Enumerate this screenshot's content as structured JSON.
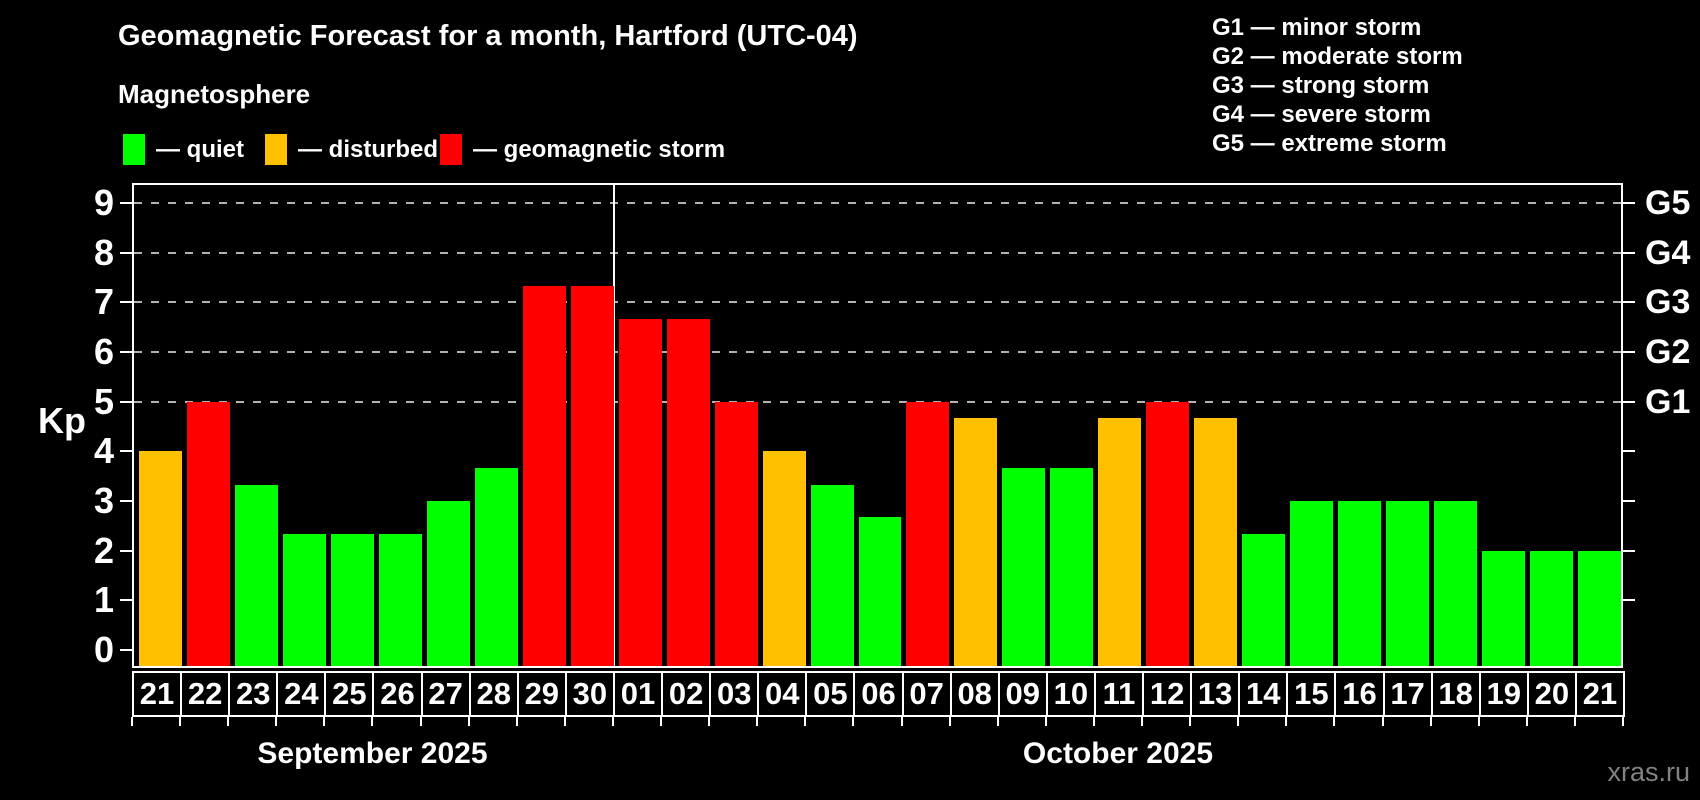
{
  "title": "Geomagnetic Forecast for a month, Hartford (UTC-04)",
  "subtitle": "Magnetosphere",
  "magnetosphere_legend": [
    {
      "status": "quiet",
      "label": "— quiet",
      "color": "#00ff00"
    },
    {
      "status": "disturbed",
      "label": "— disturbed",
      "color": "#ffc000"
    },
    {
      "status": "storm",
      "label": "— geomagnetic storm",
      "color": "#ff0000"
    }
  ],
  "storm_scale_legend": [
    "G1 — minor storm",
    "G2 — moderate storm",
    "G3 — strong storm",
    "G4 — severe storm",
    "G5 — extreme storm"
  ],
  "watermark": "xras.ru",
  "chart_data": {
    "type": "bar",
    "title": "Geomagnetic Forecast for a month, Hartford (UTC-04)",
    "ylabel": "Kp",
    "ylim": [
      -0.35,
      9.65
    ],
    "yticks": [
      0,
      1,
      2,
      3,
      4,
      5,
      6,
      7,
      8,
      9
    ],
    "gridlines_at": [
      5,
      6,
      7,
      8,
      9
    ],
    "grid_style": "dashed",
    "legend_position": "top",
    "right_axis": [
      {
        "kp": 5,
        "label": "G1"
      },
      {
        "kp": 6,
        "label": "G2"
      },
      {
        "kp": 7,
        "label": "G3"
      },
      {
        "kp": 8,
        "label": "G4"
      },
      {
        "kp": 9,
        "label": "G5"
      }
    ],
    "status_colors": {
      "quiet": "#00ff00",
      "disturbed": "#ffc000",
      "storm": "#ff0000"
    },
    "months": [
      {
        "label": "September 2025",
        "start_index": 0,
        "days": 10
      },
      {
        "label": "October 2025",
        "start_index": 10,
        "days": 21
      }
    ],
    "bars": [
      {
        "day": "21",
        "kp": 4.0,
        "status": "disturbed"
      },
      {
        "day": "22",
        "kp": 5.0,
        "status": "storm"
      },
      {
        "day": "23",
        "kp": 3.33,
        "status": "quiet"
      },
      {
        "day": "24",
        "kp": 2.33,
        "status": "quiet"
      },
      {
        "day": "25",
        "kp": 2.33,
        "status": "quiet"
      },
      {
        "day": "26",
        "kp": 2.33,
        "status": "quiet"
      },
      {
        "day": "27",
        "kp": 3.0,
        "status": "quiet"
      },
      {
        "day": "28",
        "kp": 3.67,
        "status": "quiet"
      },
      {
        "day": "29",
        "kp": 7.33,
        "status": "storm"
      },
      {
        "day": "30",
        "kp": 7.33,
        "status": "storm"
      },
      {
        "day": "01",
        "kp": 6.67,
        "status": "storm"
      },
      {
        "day": "02",
        "kp": 6.67,
        "status": "storm"
      },
      {
        "day": "03",
        "kp": 5.0,
        "status": "storm"
      },
      {
        "day": "04",
        "kp": 4.0,
        "status": "disturbed"
      },
      {
        "day": "05",
        "kp": 3.33,
        "status": "quiet"
      },
      {
        "day": "06",
        "kp": 2.67,
        "status": "quiet"
      },
      {
        "day": "07",
        "kp": 5.0,
        "status": "storm"
      },
      {
        "day": "08",
        "kp": 4.67,
        "status": "disturbed"
      },
      {
        "day": "09",
        "kp": 3.67,
        "status": "quiet"
      },
      {
        "day": "10",
        "kp": 3.67,
        "status": "quiet"
      },
      {
        "day": "11",
        "kp": 4.67,
        "status": "disturbed"
      },
      {
        "day": "12",
        "kp": 5.0,
        "status": "storm"
      },
      {
        "day": "13",
        "kp": 4.67,
        "status": "disturbed"
      },
      {
        "day": "14",
        "kp": 2.33,
        "status": "quiet"
      },
      {
        "day": "15",
        "kp": 3.0,
        "status": "quiet"
      },
      {
        "day": "16",
        "kp": 3.0,
        "status": "quiet"
      },
      {
        "day": "17",
        "kp": 3.0,
        "status": "quiet"
      },
      {
        "day": "18",
        "kp": 3.0,
        "status": "quiet"
      },
      {
        "day": "19",
        "kp": 2.0,
        "status": "quiet"
      },
      {
        "day": "20",
        "kp": 2.0,
        "status": "quiet"
      },
      {
        "day": "21",
        "kp": 2.0,
        "status": "quiet"
      }
    ]
  }
}
